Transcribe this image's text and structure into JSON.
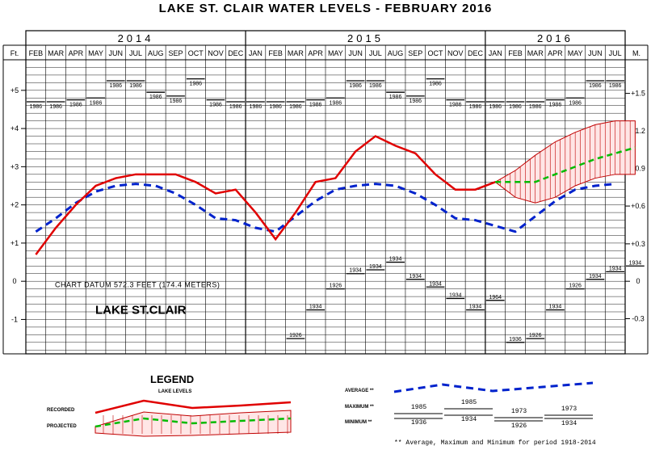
{
  "title": "LAKE ST. CLAIR WATER LEVELS - FEBRUARY 2016",
  "chart_data": {
    "type": "line",
    "years": [
      {
        "label": "2014",
        "months": [
          "FEB",
          "MAR",
          "APR",
          "MAY",
          "JUN",
          "JUL",
          "AUG",
          "SEP",
          "OCT",
          "NOV",
          "DEC"
        ]
      },
      {
        "label": "2015",
        "months": [
          "JAN",
          "FEB",
          "MAR",
          "APR",
          "MAY",
          "JUN",
          "JUL",
          "AUG",
          "SEP",
          "OCT",
          "NOV",
          "DEC"
        ]
      },
      {
        "label": "2016",
        "months": [
          "JAN",
          "FEB",
          "MAR",
          "APR",
          "MAY",
          "JUN",
          "JUL"
        ]
      }
    ],
    "left_axis_unit": "Ft.",
    "right_axis_unit": "M.",
    "ylim_ft": [
      -1.9,
      5.8
    ],
    "left_ticks": [
      "+5",
      "+4",
      "+3",
      "+2",
      "+1",
      "0",
      "-1"
    ],
    "left_tick_values": [
      5,
      4,
      3,
      2,
      1,
      0,
      -1
    ],
    "right_ticks": [
      "+1.5",
      "+1.2",
      "+0.9",
      "+0.6",
      "+0.3",
      "0",
      "-0.3"
    ],
    "right_tick_values_ft": [
      4.92,
      3.94,
      2.95,
      1.97,
      0.98,
      0,
      -0.98
    ],
    "grid": true,
    "datum_label": "CHART DATUM  572.3 FEET (174.4 METERS)",
    "lake_label": "LAKE ST.CLAIR",
    "series": [
      {
        "name": "RECORDED",
        "color": "#e00000",
        "values": [
          0.7,
          1.4,
          2.0,
          2.5,
          2.7,
          2.8,
          2.8,
          2.8,
          2.6,
          2.3,
          2.4,
          1.8,
          1.1,
          1.8,
          2.6,
          2.7,
          3.4,
          3.8,
          3.55,
          3.35,
          2.8,
          2.4,
          2.4,
          2.6
        ]
      },
      {
        "name": "AVERAGE **",
        "color": "#0022cc",
        "values": [
          1.3,
          1.65,
          2.05,
          2.35,
          2.5,
          2.55,
          2.5,
          2.3,
          2.0,
          1.65,
          1.6,
          1.4,
          1.3,
          1.7,
          2.1,
          2.4,
          2.5,
          2.55,
          2.5,
          2.3,
          2.0,
          1.65,
          1.6,
          1.45,
          1.3,
          1.7,
          2.1,
          2.4,
          2.5,
          2.55
        ]
      },
      {
        "name": "PROJECTED",
        "color": "#00bb00",
        "start_index": 23,
        "values": [
          2.6,
          2.6,
          2.6,
          2.8,
          3.0,
          3.2,
          3.35,
          3.5
        ],
        "upper": [
          2.6,
          2.9,
          3.3,
          3.65,
          3.9,
          4.1,
          4.2,
          4.2
        ],
        "lower": [
          2.6,
          2.2,
          2.05,
          2.2,
          2.5,
          2.7,
          2.8,
          2.8
        ]
      }
    ],
    "maximum": [
      {
        "year": "1986",
        "values": [
          4.7,
          4.7,
          4.75,
          4.8,
          5.25,
          5.25,
          4.95,
          4.85,
          5.3,
          4.75,
          4.7,
          4.7,
          4.7,
          4.7,
          4.75,
          4.8,
          5.25,
          5.25,
          4.95,
          4.85,
          5.3,
          4.75,
          4.7,
          4.7,
          4.7,
          4.7,
          4.75,
          4.8,
          5.25,
          5.25
        ]
      }
    ],
    "minimum": [
      {
        "index": 13,
        "year": "1926",
        "value": -1.5
      },
      {
        "index": 14,
        "year": "1934",
        "value": -0.75
      },
      {
        "index": 15,
        "year": "1926",
        "value": -0.2
      },
      {
        "index": 16,
        "year": "1934",
        "value": 0.2
      },
      {
        "index": 17,
        "year": "1934",
        "value": 0.3
      },
      {
        "index": 18,
        "year": "1934",
        "value": 0.5
      },
      {
        "index": 19,
        "year": "1934",
        "value": 0.05
      },
      {
        "index": 20,
        "year": "1934",
        "value": -0.15
      },
      {
        "index": 21,
        "year": "1934",
        "value": -0.45
      },
      {
        "index": 22,
        "year": "1934",
        "value": -0.75
      },
      {
        "index": 23,
        "year": "1964",
        "value": -0.5
      },
      {
        "index": 24,
        "year": "1936",
        "value": -1.6
      },
      {
        "index": 25,
        "year": "1926",
        "value": -1.5
      },
      {
        "index": 26,
        "year": "1934",
        "value": -0.75
      },
      {
        "index": 27,
        "year": "1926",
        "value": -0.2
      },
      {
        "index": 28,
        "year": "1934",
        "value": 0.05
      },
      {
        "index": 29,
        "year": "1934",
        "value": 0.25
      },
      {
        "index": 30,
        "year": "1934",
        "value": 0.4
      }
    ]
  },
  "legend": {
    "title": "LEGEND",
    "subtitle": "LAKE LEVELS",
    "recorded_label": "RECORDED",
    "projected_label": "PROJECTED",
    "average_label": "AVERAGE **",
    "maximum_label": "MAXIMUM **",
    "minimum_label": "MINIMUM **",
    "max_years": [
      "1985",
      "1985",
      "1973",
      "1973"
    ],
    "min_years": [
      "1936",
      "1934",
      "1926",
      "1934"
    ],
    "footnote": "** Average, Maximum and Minimum for period 1918-2014"
  }
}
